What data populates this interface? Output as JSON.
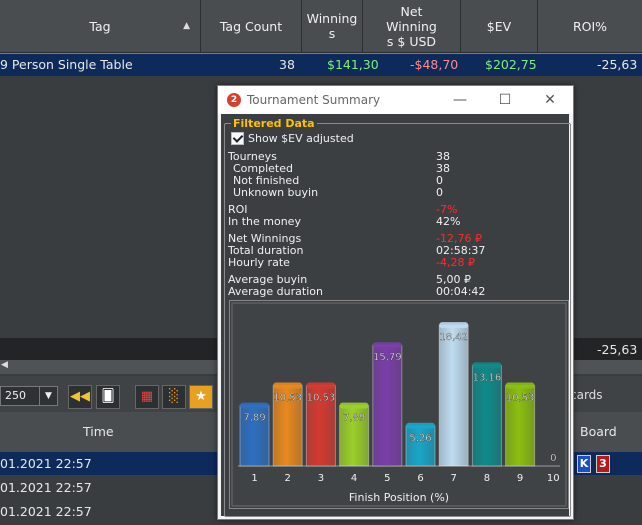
{
  "grid": {
    "columns": [
      "Tag",
      "Tag Count",
      "Winnings",
      "Net Winnings $ USD",
      "$EV",
      "ROI%"
    ],
    "columns_display": [
      "Tag",
      "Tag Count",
      "Winning\ns",
      "Net\nWinning\ns $ USD",
      "$EV",
      "ROI%"
    ],
    "row": {
      "tag": "9 Person Single Table",
      "tag_count": "38",
      "winnings": "$141,30",
      "net_winnings": "-$48,70",
      "ev": "$202,75",
      "roi": "-25,63"
    },
    "summary_roi": "-25,63"
  },
  "toolbar": {
    "hands_select": "250",
    "cards_label": "cards"
  },
  "grid2": {
    "col_time": "Time",
    "col_board": "Board",
    "rows": [
      {
        "time": "01.2021 22:57",
        "board": [
          "K",
          "3"
        ]
      },
      {
        "time": "01.2021 22:57"
      },
      {
        "time": "01.2021 22:57"
      }
    ]
  },
  "dialog": {
    "title": "Tournament Summary",
    "app_icon_label": "2",
    "group_label": "Filtered Data",
    "checkbox_label": "Show $EV adjusted",
    "stats": [
      {
        "label": "Tourneys",
        "value": "38"
      },
      {
        "label": "Completed",
        "value": "38"
      },
      {
        "label": "Not finished",
        "value": "0"
      },
      {
        "label": "Unknown buyin",
        "value": "0"
      },
      {
        "label": "ROI",
        "value": "-7%"
      },
      {
        "label": "In the money",
        "value": "42%"
      },
      {
        "label": "Net Winnings",
        "value": "-12,76 ₽"
      },
      {
        "label": "Total duration",
        "value": "02:58:37"
      },
      {
        "label": "Hourly rate",
        "value": "-4,28 ₽"
      },
      {
        "label": "Average buyin",
        "value": "5,00 ₽"
      },
      {
        "label": "Average duration",
        "value": "00:04:42"
      }
    ]
  },
  "chart_data": {
    "type": "bar",
    "categories": [
      "1",
      "2",
      "3",
      "4",
      "5",
      "6",
      "7",
      "8",
      "9",
      "10"
    ],
    "values": [
      7.89,
      10.53,
      10.53,
      7.89,
      15.79,
      5.26,
      18.42,
      13.16,
      10.53,
      0
    ],
    "value_labels": [
      "7,89",
      "10,53",
      "10,53",
      "7,89",
      "15,79",
      "5,26",
      "18,42",
      "13,16",
      "10,53",
      "0"
    ],
    "colors": [
      "#2e6fc0",
      "#e8891e",
      "#d43a30",
      "#9ccf2a",
      "#7a3ea8",
      "#1aa6c9",
      "#c0dcf2",
      "#0f8a8a",
      "#8bbf10",
      "#888888"
    ],
    "xlabel": "Finish Position (%)",
    "ylim": [
      0,
      20
    ]
  },
  "colors": {
    "selected_row": "#0d2a5a",
    "group_label": "#ffc000",
    "negative_value": "#ff2a2a"
  }
}
